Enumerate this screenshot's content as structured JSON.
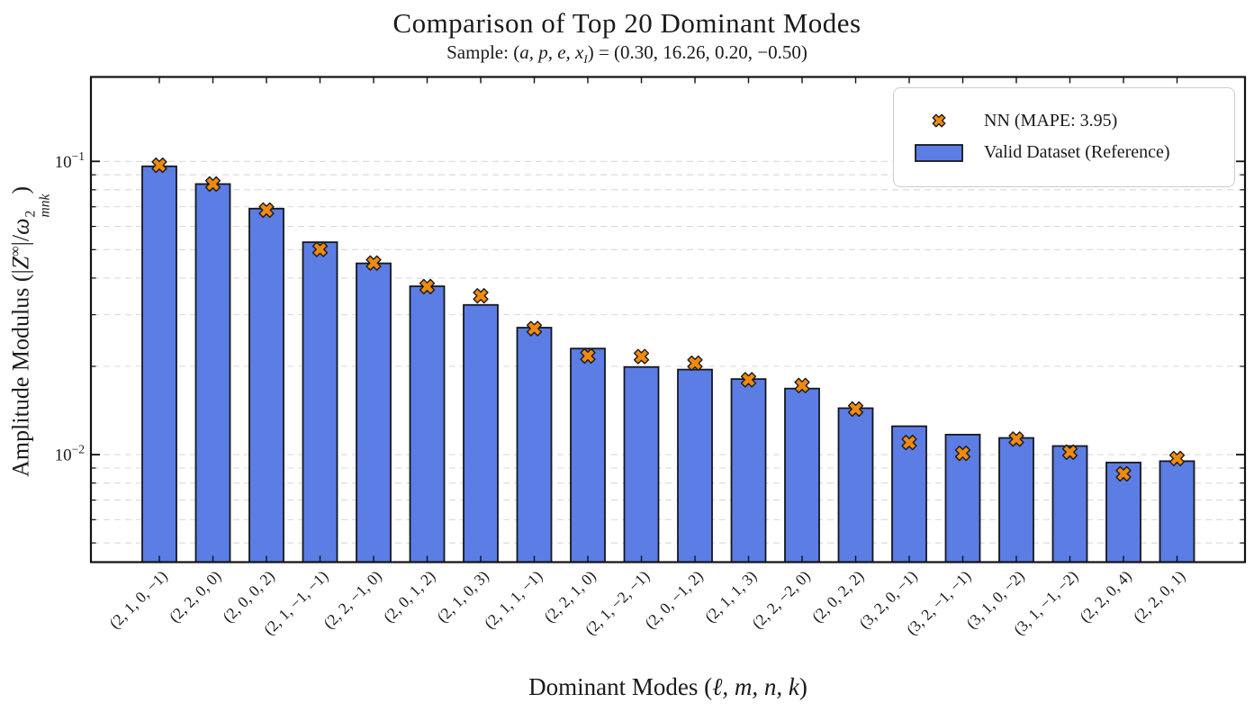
{
  "figure": {
    "title": "Comparison of Top 20 Dominant Modes",
    "subtitle": {
      "prefix": "Sample: (",
      "vars": "a, p, e, x",
      "var_sub": "I",
      "suffix": ") = (0.30, 16.26, 0.20, −0.50)"
    },
    "xlabel": {
      "prefix": "Dominant Modes (",
      "vars": "ℓ, m, n, k",
      "suffix": ")"
    },
    "ylabel": {
      "prefix": "Amplitude Modulus (|",
      "z": "Z",
      "z_sup": "∞",
      "mid": "|/",
      "omega": "ω",
      "omega_sup": "2",
      "omega_sub": "mnk",
      "suffix": ")"
    }
  },
  "legend": {
    "items": [
      {
        "label": "NN (MAPE: 3.95)",
        "marker": "x-cross",
        "color": "#EF8A11"
      },
      {
        "label": "Valid Dataset (Reference)",
        "marker": "bar-swatch",
        "color": "#5B7DE4"
      }
    ]
  },
  "colors": {
    "bar_fill": "#5B7DE4",
    "bar_edge": "#16161d",
    "marker_fill": "#EF8A11",
    "marker_edge": "#1a1a1a",
    "grid": "#d9d9d9",
    "axis": "#111111"
  },
  "chart_data": {
    "type": "bar",
    "y_scale": "log",
    "title": "Comparison of Top 20 Dominant Modes",
    "subtitle": "Sample: (a, p, e, x_I) = (0.30, 16.26, 0.20, -0.50)",
    "xlabel": "Dominant Modes (l, m, n, k)",
    "ylabel": "Amplitude Modulus (|Z^inf|/omega^2_mnk)",
    "categories": [
      "(2, 1, 0, −1)",
      "(2, 2, 0, 0)",
      "(2, 0, 0, 2)",
      "(2, 1, −1, −1)",
      "(2, 2, −1, 0)",
      "(2, 0, 1, 2)",
      "(2, 1, 0, 3)",
      "(2, 1, 1, −1)",
      "(2, 2, 1, 0)",
      "(2, 1, −2, −1)",
      "(2, 0, −1, 2)",
      "(2, 1, 1, 3)",
      "(2, 2, −2, 0)",
      "(2, 0, 2, 2)",
      "(3, 2, 0, −1)",
      "(3, 2, −1, −1)",
      "(3, 1, 0, −2)",
      "(3, 1, −1, −2)",
      "(2, 2, 0, 4)",
      "(2, 2, 0, 1)"
    ],
    "series": [
      {
        "name": "Valid Dataset (Reference)",
        "type": "bar",
        "color": "#5B7DE4",
        "values": [
          0.0962,
          0.0837,
          0.069,
          0.053,
          0.0449,
          0.0375,
          0.0324,
          0.0271,
          0.023,
          0.0199,
          0.0195,
          0.0181,
          0.0168,
          0.0144,
          0.0125,
          0.0117,
          0.0114,
          0.0107,
          0.0094,
          0.0095
        ]
      },
      {
        "name": "NN (MAPE: 3.95)",
        "type": "scatter",
        "marker": "X",
        "color": "#EF8A11",
        "values": [
          0.097,
          0.0837,
          0.0682,
          0.0501,
          0.045,
          0.0374,
          0.0348,
          0.0269,
          0.0217,
          0.0216,
          0.0205,
          0.018,
          0.0172,
          0.0143,
          0.011,
          0.0101,
          0.0113,
          0.0102,
          0.0086,
          0.0097
        ]
      }
    ],
    "ylim": [
      0.0043,
      0.194
    ],
    "y_ticks": [
      {
        "base": "10",
        "exp": "−1",
        "value": 0.1
      },
      {
        "base": "10",
        "exp": "−2",
        "value": 0.01
      }
    ],
    "y_gridlines": [
      0.1,
      0.09,
      0.08,
      0.07,
      0.06,
      0.05,
      0.04,
      0.03,
      0.02,
      0.01,
      0.009,
      0.008,
      0.007,
      0.006,
      0.005
    ],
    "grid": "horizontal dashed minor+major",
    "legend_position": "upper right"
  }
}
